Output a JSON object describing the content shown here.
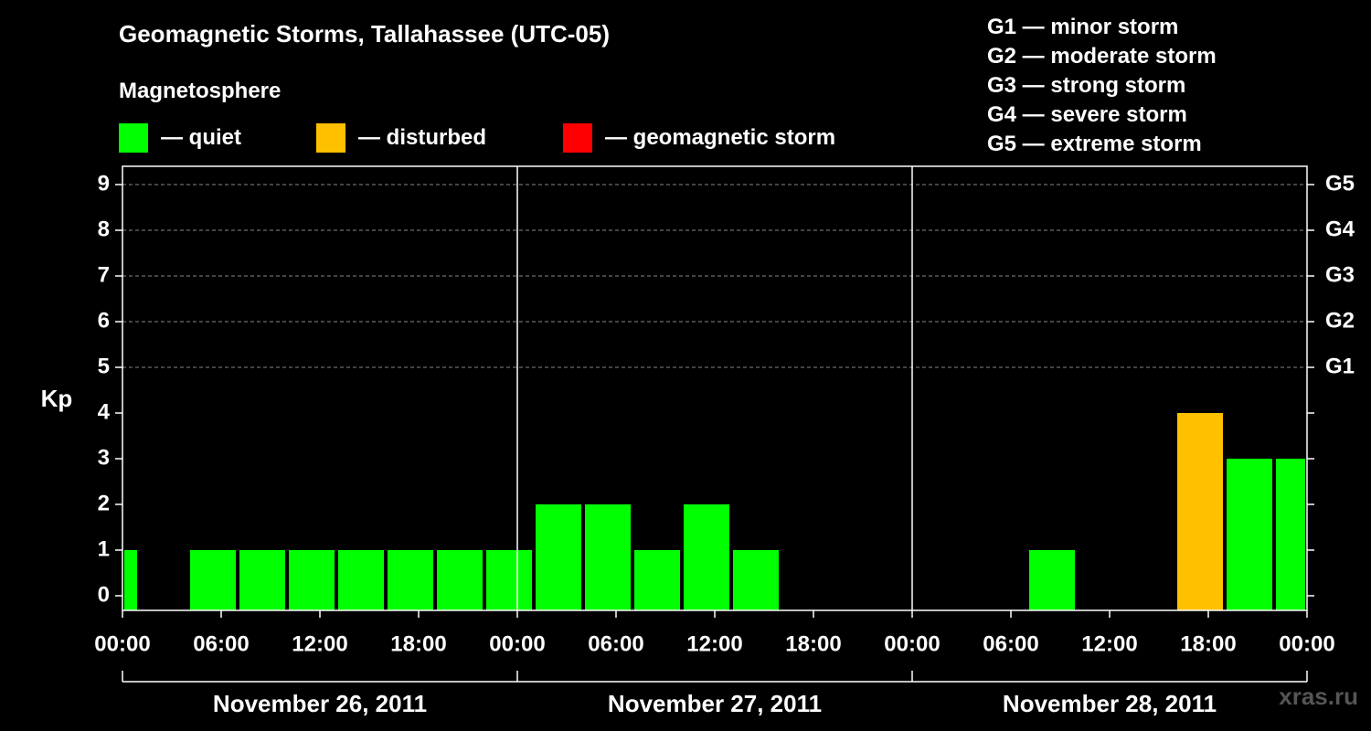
{
  "header": {
    "title": "Geomagnetic Storms, Tallahassee (UTC-05)",
    "subtitle": "Magnetosphere"
  },
  "legend": [
    {
      "label": "— quiet",
      "color": "#00ff00"
    },
    {
      "label": "— disturbed",
      "color": "#ffc000"
    },
    {
      "label": "— geomagnetic storm",
      "color": "#ff0000"
    }
  ],
  "storm_scale": [
    "G1 — minor storm",
    "G2 — moderate storm",
    "G3 — strong storm",
    "G4 — severe storm",
    "G5 — extreme storm"
  ],
  "watermark": "xras.ru",
  "chart_data": {
    "type": "bar",
    "ylabel": "Kp",
    "ylim": [
      0,
      9
    ],
    "y_ticks": [
      0,
      1,
      2,
      3,
      4,
      5,
      6,
      7,
      8,
      9
    ],
    "right_axis_labels": [
      {
        "kp": 5,
        "label": "G1"
      },
      {
        "kp": 6,
        "label": "G2"
      },
      {
        "kp": 7,
        "label": "G3"
      },
      {
        "kp": 8,
        "label": "G4"
      },
      {
        "kp": 9,
        "label": "G5"
      }
    ],
    "x_range_hours": [
      0,
      72
    ],
    "x_tick_labels": [
      "00:00",
      "06:00",
      "12:00",
      "18:00",
      "00:00",
      "06:00",
      "12:00",
      "18:00",
      "00:00",
      "06:00",
      "12:00",
      "18:00",
      "00:00"
    ],
    "days": [
      "November 26, 2011",
      "November 27, 2011",
      "November 28, 2011"
    ],
    "grid_dashed_at": [
      5,
      6,
      7,
      8,
      9
    ],
    "bars": [
      {
        "start_hour": 0,
        "end_hour": 1,
        "kp": 1,
        "status": "quiet"
      },
      {
        "start_hour": 4,
        "end_hour": 7,
        "kp": 1,
        "status": "quiet"
      },
      {
        "start_hour": 7,
        "end_hour": 10,
        "kp": 1,
        "status": "quiet"
      },
      {
        "start_hour": 10,
        "end_hour": 13,
        "kp": 1,
        "status": "quiet"
      },
      {
        "start_hour": 13,
        "end_hour": 16,
        "kp": 1,
        "status": "quiet"
      },
      {
        "start_hour": 16,
        "end_hour": 19,
        "kp": 1,
        "status": "quiet"
      },
      {
        "start_hour": 19,
        "end_hour": 22,
        "kp": 1,
        "status": "quiet"
      },
      {
        "start_hour": 22,
        "end_hour": 25,
        "kp": 1,
        "status": "quiet"
      },
      {
        "start_hour": 25,
        "end_hour": 28,
        "kp": 2,
        "status": "quiet"
      },
      {
        "start_hour": 28,
        "end_hour": 31,
        "kp": 2,
        "status": "quiet"
      },
      {
        "start_hour": 31,
        "end_hour": 34,
        "kp": 1,
        "status": "quiet"
      },
      {
        "start_hour": 34,
        "end_hour": 37,
        "kp": 2,
        "status": "quiet"
      },
      {
        "start_hour": 37,
        "end_hour": 40,
        "kp": 1,
        "status": "quiet"
      },
      {
        "start_hour": 55,
        "end_hour": 58,
        "kp": 1,
        "status": "quiet"
      },
      {
        "start_hour": 64,
        "end_hour": 67,
        "kp": 4,
        "status": "disturbed"
      },
      {
        "start_hour": 67,
        "end_hour": 70,
        "kp": 3,
        "status": "quiet"
      },
      {
        "start_hour": 70,
        "end_hour": 72,
        "kp": 3,
        "status": "quiet"
      }
    ],
    "status_colors": {
      "quiet": "#00ff00",
      "disturbed": "#ffc000",
      "storm": "#ff0000"
    }
  }
}
